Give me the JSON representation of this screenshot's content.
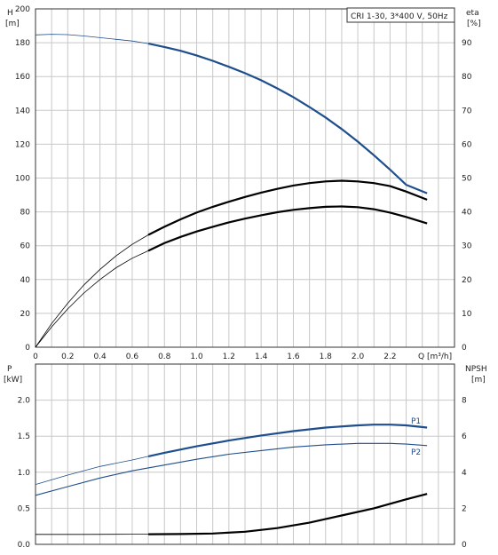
{
  "chart_data": [
    {
      "type": "line",
      "title": "CRI 1-30, 3*400 V, 50Hz",
      "xlabel": "Q [m³/h]",
      "x_ticks": [
        "0",
        "0.2",
        "0.4",
        "0.6",
        "0.8",
        "1.0",
        "1.2",
        "1.4",
        "1.6",
        "1.8",
        "2.0",
        "2.2"
      ],
      "xlim": [
        0,
        2.6
      ],
      "ylabel_left": {
        "name": "H",
        "unit": "[m]"
      },
      "ylim_left": [
        0,
        200
      ],
      "y_ticks_left": [
        "0",
        "20",
        "40",
        "60",
        "80",
        "100",
        "120",
        "140",
        "160",
        "180",
        "200"
      ],
      "ylabel_right": {
        "name": "eta",
        "unit": "[%]"
      },
      "ylim_right": [
        0,
        100
      ],
      "y_ticks_right": [
        "0",
        "10",
        "20",
        "30",
        "40",
        "50",
        "60",
        "70",
        "80",
        "90"
      ],
      "grid": true,
      "series": [
        {
          "axis": "left",
          "color": "#1f4e8c",
          "thick_from": 0.7,
          "x": [
            0,
            0.1,
            0.2,
            0.3,
            0.4,
            0.5,
            0.6,
            0.7,
            0.8,
            0.9,
            1.0,
            1.1,
            1.2,
            1.3,
            1.4,
            1.5,
            1.6,
            1.7,
            1.8,
            1.9,
            2.0,
            2.1,
            2.2,
            2.3,
            2.43
          ],
          "values": [
            184.6,
            185,
            184.8,
            184,
            183,
            182,
            181,
            179.5,
            177.5,
            175.2,
            172.5,
            169.3,
            165.8,
            162,
            157.8,
            153,
            147.8,
            142,
            135.8,
            129,
            121.5,
            113.5,
            105,
            96,
            91
          ]
        },
        {
          "axis": "right",
          "color": "#000000",
          "thick_from": 0.7,
          "x": [
            0,
            0.1,
            0.2,
            0.3,
            0.4,
            0.5,
            0.6,
            0.7,
            0.8,
            0.9,
            1.0,
            1.1,
            1.2,
            1.3,
            1.4,
            1.5,
            1.6,
            1.7,
            1.8,
            1.9,
            2.0,
            2.1,
            2.2,
            2.3,
            2.43
          ],
          "values": [
            0,
            7,
            13,
            18.4,
            23,
            27,
            30.4,
            33.2,
            35.6,
            37.8,
            39.8,
            41.5,
            43,
            44.4,
            45.7,
            46.8,
            47.8,
            48.5,
            49,
            49.2,
            49,
            48.5,
            47.6,
            46,
            43.6
          ]
        },
        {
          "axis": "right",
          "color": "#000000",
          "thick_from": 0.7,
          "x": [
            0,
            0.1,
            0.2,
            0.3,
            0.4,
            0.5,
            0.6,
            0.7,
            0.8,
            0.9,
            1.0,
            1.1,
            1.2,
            1.3,
            1.4,
            1.5,
            1.6,
            1.7,
            1.8,
            1.9,
            2.0,
            2.1,
            2.2,
            2.3,
            2.43
          ],
          "values": [
            0,
            6,
            11.3,
            16,
            20,
            23.5,
            26.3,
            28.5,
            30.8,
            32.6,
            34.2,
            35.6,
            36.9,
            38,
            39,
            39.9,
            40.6,
            41.1,
            41.5,
            41.6,
            41.4,
            40.8,
            39.8,
            38.5,
            36.6
          ]
        }
      ]
    },
    {
      "type": "line",
      "xlim": [
        0,
        2.6
      ],
      "ylabel_left": {
        "name": "P",
        "unit": "[kW]"
      },
      "ylim_left": [
        0,
        2.5
      ],
      "y_ticks_left": [
        "0.0",
        "0.5",
        "1.0",
        "1.5",
        "2.0"
      ],
      "ylabel_right": {
        "name": "NPSH",
        "unit": "[m]"
      },
      "ylim_right": [
        0,
        10
      ],
      "y_ticks_right": [
        "0",
        "2",
        "4",
        "6",
        "8"
      ],
      "grid": true,
      "series": [
        {
          "name": "P1",
          "axis": "left",
          "color": "#1f4e8c",
          "thick_from": 0.7,
          "x": [
            0,
            0.2,
            0.4,
            0.6,
            0.7,
            0.8,
            1.0,
            1.2,
            1.4,
            1.6,
            1.8,
            2.0,
            2.1,
            2.2,
            2.3,
            2.43
          ],
          "values": [
            0.83,
            0.96,
            1.08,
            1.17,
            1.22,
            1.27,
            1.36,
            1.44,
            1.51,
            1.57,
            1.62,
            1.65,
            1.66,
            1.66,
            1.65,
            1.62
          ]
        },
        {
          "name": "P2",
          "axis": "left",
          "color": "#1f4e8c",
          "thick_from": null,
          "x": [
            0,
            0.2,
            0.4,
            0.6,
            0.8,
            1.0,
            1.2,
            1.4,
            1.6,
            1.8,
            2.0,
            2.1,
            2.2,
            2.3,
            2.43
          ],
          "values": [
            0.68,
            0.8,
            0.92,
            1.02,
            1.1,
            1.18,
            1.25,
            1.3,
            1.35,
            1.38,
            1.4,
            1.4,
            1.4,
            1.39,
            1.37
          ]
        },
        {
          "axis": "right",
          "color": "#000000",
          "thick_from": 0.7,
          "x": [
            0,
            0.3,
            0.6,
            0.7,
            0.9,
            1.1,
            1.3,
            1.5,
            1.7,
            1.9,
            2.1,
            2.3,
            2.43
          ],
          "values": [
            0.55,
            0.55,
            0.56,
            0.56,
            0.57,
            0.6,
            0.7,
            0.9,
            1.2,
            1.6,
            2.0,
            2.5,
            2.8
          ]
        }
      ]
    }
  ]
}
